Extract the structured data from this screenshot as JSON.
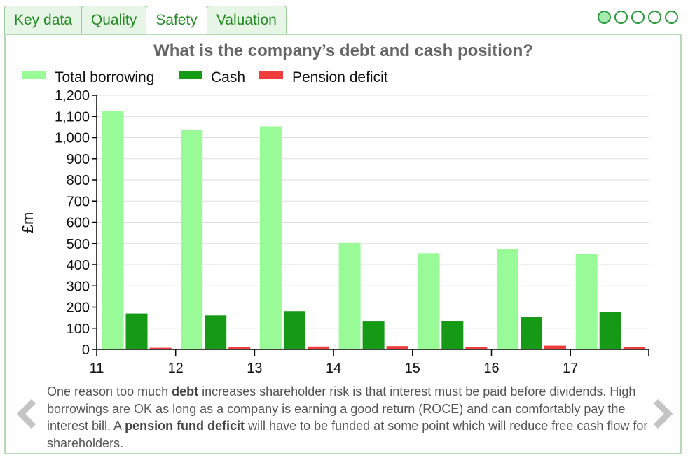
{
  "tabs": [
    {
      "label": "Key data",
      "active": false
    },
    {
      "label": "Quality",
      "active": false
    },
    {
      "label": "Safety",
      "active": true
    },
    {
      "label": "Valuation",
      "active": false
    }
  ],
  "page_dots": {
    "count": 5,
    "current": 1
  },
  "caption": {
    "part1": "One reason too much ",
    "bold1": "debt",
    "part2": " increases shareholder risk is that interest must be paid before dividends. High borrowings are OK as long as a company is earning a good return (ROCE) and can comfortably pay the interest bill. A ",
    "bold2": "pension fund deficit",
    "part3": " will have to be funded at some point which will reduce free cash flow for shareholders."
  },
  "icons": {
    "prev": "chevron-left-icon",
    "next": "chevron-right-icon"
  },
  "chart_data": {
    "type": "bar",
    "title": "What is the company’s debt and cash position?",
    "ylabel": "£m",
    "xlabel": "",
    "categories": [
      "11",
      "12",
      "13",
      "14",
      "15",
      "16",
      "17"
    ],
    "series": [
      {
        "name": "Total borrowing",
        "color": "#98fb98",
        "values": [
          1125,
          1037,
          1053,
          503,
          455,
          473,
          450
        ]
      },
      {
        "name": "Cash",
        "color": "#159a15",
        "values": [
          170,
          161,
          181,
          132,
          134,
          155,
          177
        ]
      },
      {
        "name": "Pension deficit",
        "color": "#f03c3c",
        "values": [
          8,
          12,
          14,
          16,
          12,
          18,
          13
        ]
      }
    ],
    "ylim": [
      0,
      1200
    ],
    "yticks": [
      "0",
      "100",
      "200",
      "300",
      "400",
      "500",
      "600",
      "700",
      "800",
      "900",
      "1,000",
      "1,100",
      "1,200"
    ],
    "grid": true,
    "legend_position": "top-left"
  }
}
